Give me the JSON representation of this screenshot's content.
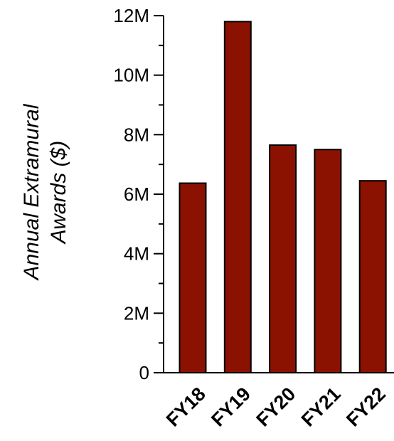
{
  "chart_data": {
    "type": "bar",
    "categories": [
      "FY18",
      "FY19",
      "FY20",
      "FY21",
      "FY22"
    ],
    "values": [
      6370000,
      11800000,
      7650000,
      7500000,
      6450000
    ],
    "ylabel": "Annual Extramural Awards ($)",
    "ylabel_lines": [
      "Annual Extramural",
      "Awards ($)"
    ],
    "ylim": [
      0,
      12000000
    ],
    "yticks": [
      0,
      2000000,
      4000000,
      6000000,
      8000000,
      10000000,
      12000000
    ],
    "ytick_labels": [
      "0",
      "2M",
      "4M",
      "6M",
      "8M",
      "10M",
      "12M"
    ],
    "grid": false,
    "legend": "none",
    "bar_color": "#8b1200",
    "bar_edge_color": "#000000"
  }
}
